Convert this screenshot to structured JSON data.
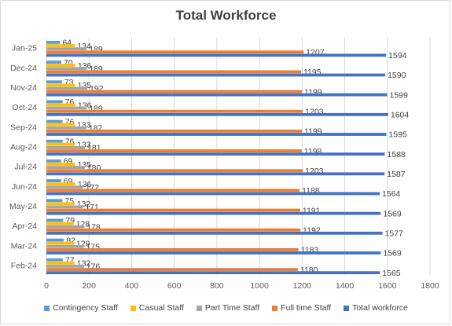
{
  "chart_data": {
    "type": "bar",
    "orientation": "horizontal",
    "title": "Total Workforce",
    "categories": [
      "Feb-24",
      "Mar-24",
      "Apr-24",
      "May-24",
      "Jun-24",
      "Jul-24",
      "Aug-24",
      "Sep-24",
      "Oct-24",
      "Nov-24",
      "Dec-24",
      "Jan-25"
    ],
    "series": [
      {
        "name": "Contingency Staff",
        "color": "#5B9BD5",
        "values": [
          77,
          82,
          79,
          75,
          69,
          69,
          76,
          76,
          76,
          73,
          70,
          64
        ]
      },
      {
        "name": "Casual Staff",
        "color": "#FFC000",
        "values": [
          132,
          129,
          128,
          132,
          136,
          135,
          133,
          133,
          136,
          135,
          136,
          134
        ]
      },
      {
        "name": "Part Time Staff",
        "color": "#A5A5A5",
        "values": [
          176,
          175,
          178,
          171,
          172,
          180,
          181,
          187,
          189,
          192,
          189,
          189
        ]
      },
      {
        "name": "Full time Staff",
        "color": "#ED7D31",
        "values": [
          1180,
          1183,
          1192,
          1191,
          1188,
          1203,
          1198,
          1199,
          1203,
          1199,
          1195,
          1207
        ]
      },
      {
        "name": "Total workforce",
        "color": "#4472C4",
        "values": [
          1565,
          1569,
          1577,
          1569,
          1564,
          1587,
          1588,
          1595,
          1604,
          1599,
          1590,
          1594
        ]
      }
    ],
    "xlim": [
      0,
      1800
    ],
    "xticks": [
      "0",
      "200",
      "400",
      "600",
      "800",
      "1000",
      "1200",
      "1400",
      "1600",
      "1800"
    ],
    "grid": true,
    "legend_position": "bottom",
    "data_labels": true
  }
}
